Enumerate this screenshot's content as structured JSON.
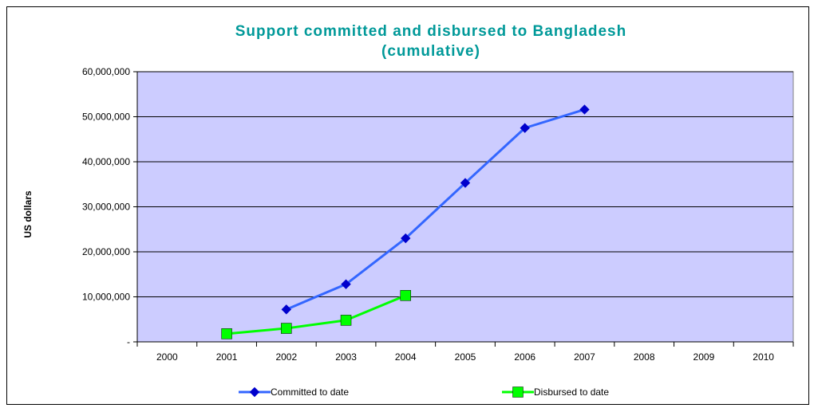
{
  "chart_data": {
    "type": "line",
    "title_line1": "Support committed and disbursed to Bangladesh",
    "title_line2": "(cumulative)",
    "title_color": "#009999",
    "ylabel": "US dollars",
    "xlabel": "",
    "categories": [
      "2000",
      "2001",
      "2002",
      "2003",
      "2004",
      "2005",
      "2006",
      "2007",
      "2008",
      "2009",
      "2010"
    ],
    "ylim": [
      0,
      60000000
    ],
    "y_ticks": [
      0,
      10000000,
      20000000,
      30000000,
      40000000,
      50000000,
      60000000
    ],
    "y_tick_labels": [
      "-",
      "10,000,000",
      "20,000,000",
      "30,000,000",
      "40,000,000",
      "50,000,000",
      "60,000,000"
    ],
    "grid": true,
    "plot_background": "#ccccff",
    "legend_position": "bottom",
    "series": [
      {
        "name": "Committed to date",
        "color": "#3366ff",
        "marker": "diamond",
        "marker_color": "#0000cc",
        "values": [
          null,
          null,
          7200000,
          12800000,
          23000000,
          35300000,
          47500000,
          51600000,
          null,
          null,
          null
        ]
      },
      {
        "name": "Disbursed to date",
        "color": "#00ff00",
        "marker": "square",
        "marker_color": "#00ff00",
        "values": [
          null,
          1800000,
          3000000,
          4800000,
          10300000,
          null,
          null,
          null,
          null,
          null,
          null
        ]
      }
    ]
  }
}
